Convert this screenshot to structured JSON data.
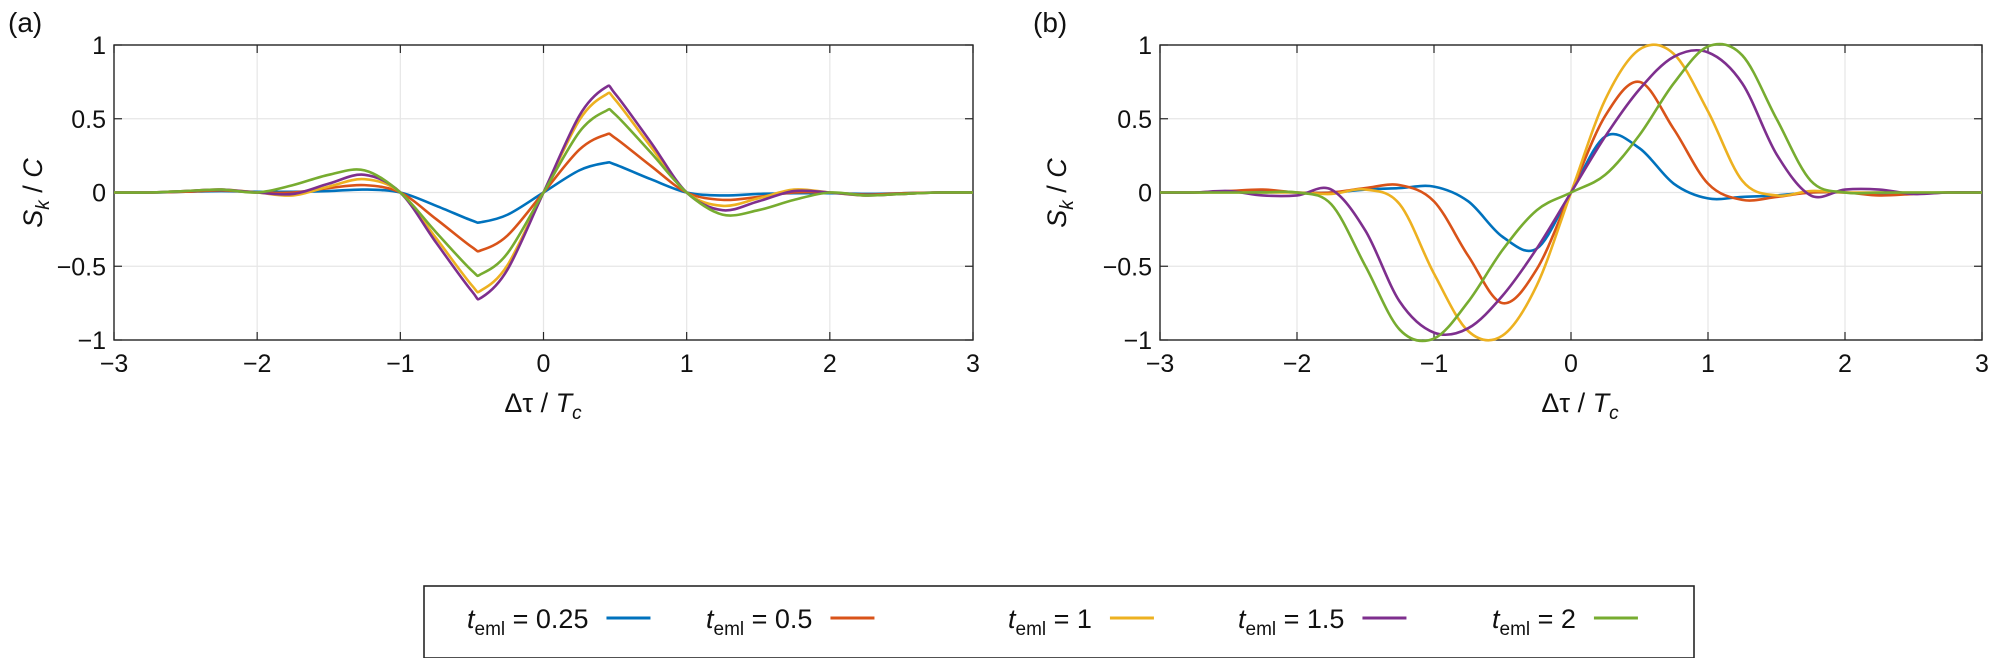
{
  "legend": {
    "prefix": "t",
    "subscript": "eml",
    "entries": [
      {
        "label": "= 0.25",
        "color": "#0072BD"
      },
      {
        "label": "= 0.5",
        "color": "#D95319"
      },
      {
        "label": "= 1",
        "color": "#EDB120"
      },
      {
        "label": "= 1.5",
        "color": "#7E2F8E"
      },
      {
        "label": "= 2",
        "color": "#77AC30"
      }
    ]
  },
  "chart_data": [
    {
      "panel": "(a)",
      "type": "line",
      "xlabel_parts": [
        "Δτ / ",
        "T",
        "c"
      ],
      "ylabel_parts": [
        "S",
        "k",
        " / ",
        "C"
      ],
      "xlim": [
        -3,
        3
      ],
      "ylim": [
        -1,
        1
      ],
      "xticks": [
        -3,
        -2,
        -1,
        0,
        1,
        2,
        3
      ],
      "xtick_labels": [
        "−3",
        "−2",
        "−1",
        "0",
        "1",
        "2",
        "3"
      ],
      "yticks": [
        1,
        0.5,
        0,
        -0.5,
        -1
      ],
      "ytick_labels": [
        "1",
        "0.5",
        "0",
        "−0.5",
        "−1"
      ],
      "grid": true,
      "x": [
        -3,
        -2.75,
        -2.5,
        -2.25,
        -2,
        -1.75,
        -1.5,
        -1.25,
        -1,
        -0.75,
        -0.5,
        -0.43,
        -0.25,
        0,
        0.25,
        0.43,
        0.5,
        0.75,
        1,
        1.25,
        1.5,
        1.75,
        2,
        2.25,
        2.5,
        2.75,
        3
      ],
      "series": [
        {
          "name": "t_eml = 0.25",
          "values": [
            0,
            0,
            0.005,
            0.01,
            0.005,
            0.005,
            0.01,
            0.02,
            0,
            -0.09,
            -0.19,
            -0.2,
            -0.15,
            0,
            0.15,
            0.2,
            0.19,
            0.09,
            0,
            -0.02,
            -0.01,
            -0.005,
            -0.005,
            -0.01,
            -0.005,
            0,
            0
          ]
        },
        {
          "name": "t_eml = 0.5",
          "values": [
            0,
            0,
            0.005,
            0.015,
            0,
            0,
            0.03,
            0.05,
            0,
            -0.18,
            -0.37,
            -0.39,
            -0.29,
            0,
            0.29,
            0.39,
            0.37,
            0.18,
            0,
            -0.05,
            -0.03,
            0,
            0,
            -0.015,
            -0.005,
            0,
            0
          ]
        },
        {
          "name": "t_eml = 1",
          "values": [
            0,
            0,
            0.01,
            0.02,
            0,
            -0.02,
            0.04,
            0.09,
            0,
            -0.31,
            -0.63,
            -0.66,
            -0.49,
            0,
            0.49,
            0.66,
            0.63,
            0.31,
            0,
            -0.09,
            -0.04,
            0.02,
            0,
            -0.02,
            -0.01,
            0,
            0
          ]
        },
        {
          "name": "t_eml = 1.5",
          "values": [
            0,
            0,
            0.01,
            0.02,
            0,
            -0.01,
            0.06,
            0.12,
            0,
            -0.34,
            -0.67,
            -0.71,
            -0.52,
            0,
            0.52,
            0.71,
            0.67,
            0.34,
            0,
            -0.12,
            -0.06,
            0.01,
            0,
            -0.02,
            -0.01,
            0,
            0
          ]
        },
        {
          "name": "t_eml = 2",
          "values": [
            0,
            0,
            0.01,
            0.02,
            0,
            0.05,
            0.12,
            0.15,
            0,
            -0.27,
            -0.53,
            -0.55,
            -0.41,
            0,
            0.41,
            0.55,
            0.53,
            0.27,
            0,
            -0.15,
            -0.12,
            -0.05,
            0,
            -0.02,
            -0.01,
            0,
            0
          ]
        }
      ]
    },
    {
      "panel": "(b)",
      "type": "line",
      "xlabel_parts": [
        "Δτ / ",
        "T",
        "c"
      ],
      "ylabel_parts": [
        "S",
        "k",
        " / ",
        "C"
      ],
      "xlim": [
        -3,
        3
      ],
      "ylim": [
        -1,
        1
      ],
      "xticks": [
        -3,
        -2,
        -1,
        0,
        1,
        2,
        3
      ],
      "xtick_labels": [
        "−3",
        "−2",
        "−1",
        "0",
        "1",
        "2",
        "3"
      ],
      "yticks": [
        1,
        0.5,
        0,
        -0.5,
        -1
      ],
      "ytick_labels": [
        "1",
        "0.5",
        "0",
        "−0.5",
        "−1"
      ],
      "grid": true,
      "x": [
        -3,
        -2.75,
        -2.5,
        -2.25,
        -2,
        -1.75,
        -1.5,
        -1.25,
        -1,
        -0.75,
        -0.5,
        -0.25,
        0,
        0.25,
        0.5,
        0.75,
        1,
        1.25,
        1.5,
        1.75,
        2,
        2.25,
        2.5,
        2.75,
        3
      ],
      "series": [
        {
          "name": "t_eml = 0.25",
          "values": [
            0,
            0,
            0.005,
            0.01,
            0,
            0,
            0.02,
            0.03,
            0.04,
            -0.06,
            -0.3,
            -0.38,
            0,
            0.38,
            0.3,
            0.06,
            -0.04,
            -0.03,
            -0.02,
            0,
            0,
            -0.01,
            -0.005,
            0,
            0
          ]
        },
        {
          "name": "t_eml = 0.5",
          "values": [
            0,
            0,
            0.01,
            0.02,
            0,
            0,
            0.03,
            0.05,
            -0.06,
            -0.43,
            -0.75,
            -0.52,
            0,
            0.52,
            0.75,
            0.43,
            0.06,
            -0.05,
            -0.03,
            0,
            0,
            -0.02,
            -0.01,
            0,
            0
          ]
        },
        {
          "name": "t_eml = 1",
          "values": [
            0,
            0,
            0,
            0,
            0,
            -0.01,
            0.02,
            -0.08,
            -0.55,
            -0.94,
            -0.97,
            -0.63,
            0,
            0.63,
            0.97,
            0.94,
            0.55,
            0.08,
            -0.02,
            0.01,
            0,
            0,
            0,
            0,
            0
          ]
        },
        {
          "name": "t_eml = 1.5",
          "values": [
            0,
            0,
            0.01,
            -0.02,
            -0.02,
            0.02,
            -0.26,
            -0.74,
            -0.95,
            -0.92,
            -0.7,
            -0.38,
            0,
            0.38,
            0.7,
            0.92,
            0.95,
            0.74,
            0.26,
            -0.02,
            0.02,
            0.02,
            -0.01,
            0,
            0
          ]
        },
        {
          "name": "t_eml = 2",
          "values": [
            0,
            0,
            0,
            0,
            0,
            -0.08,
            -0.5,
            -0.93,
            -0.99,
            -0.74,
            -0.39,
            -0.12,
            0,
            0.12,
            0.39,
            0.74,
            0.99,
            0.93,
            0.5,
            0.08,
            0,
            0,
            0,
            0,
            0
          ]
        }
      ]
    }
  ]
}
